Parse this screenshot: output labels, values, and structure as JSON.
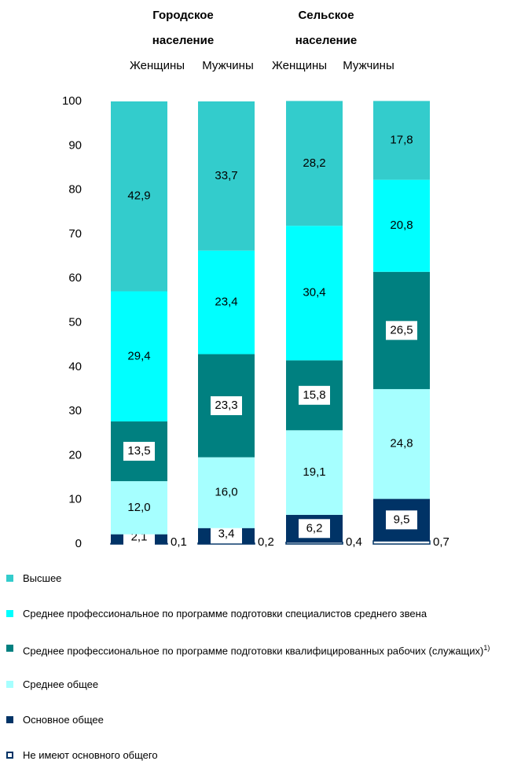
{
  "chart_data": {
    "type": "stacked_bar",
    "groups": [
      {
        "lines": [
          "Городское",
          "население"
        ]
      },
      {
        "lines": [
          "Сельское",
          "население"
        ]
      }
    ],
    "categories": [
      "Женщины",
      "Мужчины",
      "Женщины",
      "Мужчины"
    ],
    "ylim": [
      0,
      100
    ],
    "yticks": [
      0,
      10,
      20,
      30,
      40,
      50,
      60,
      70,
      80,
      90,
      100
    ],
    "series": [
      {
        "name": "Высшее",
        "color": "#33cccc",
        "values": [
          42.9,
          33.7,
          28.2,
          17.8
        ],
        "value_labels": [
          "42,9",
          "33,7",
          "28,2",
          "17,8"
        ]
      },
      {
        "name": "Среднее профессиональное по программе подготовки специалистов среднего звена",
        "color": "#00ffff",
        "values": [
          29.4,
          23.4,
          30.4,
          20.8
        ],
        "value_labels": [
          "29,4",
          "23,4",
          "30,4",
          "20,8"
        ]
      },
      {
        "name": "Среднее профессиональное по программе подготовки квалифицированных рабочих (служащих)",
        "superscript": "1)",
        "color": "#008080",
        "values": [
          13.5,
          23.3,
          15.8,
          26.5
        ],
        "value_labels": [
          "13,5",
          "23,3",
          "15,8",
          "26,5"
        ]
      },
      {
        "name": "Среднее общее",
        "color": "#a6ffff",
        "values": [
          12.0,
          16.0,
          19.1,
          24.8
        ],
        "value_labels": [
          "12,0",
          "16,0",
          "19,1",
          "24,8"
        ]
      },
      {
        "name": "Основное общее",
        "color": "#003366",
        "values": [
          2.1,
          3.4,
          6.2,
          9.5
        ],
        "value_labels": [
          "2,1",
          "3,4",
          "6,2",
          "9,5"
        ]
      },
      {
        "name": "Не имеют основного общего",
        "color": "#ffffff",
        "values": [
          0.1,
          0.2,
          0.4,
          0.7
        ],
        "value_labels": [
          "0,1",
          "0,2",
          "0,4",
          "0,7"
        ]
      }
    ]
  }
}
